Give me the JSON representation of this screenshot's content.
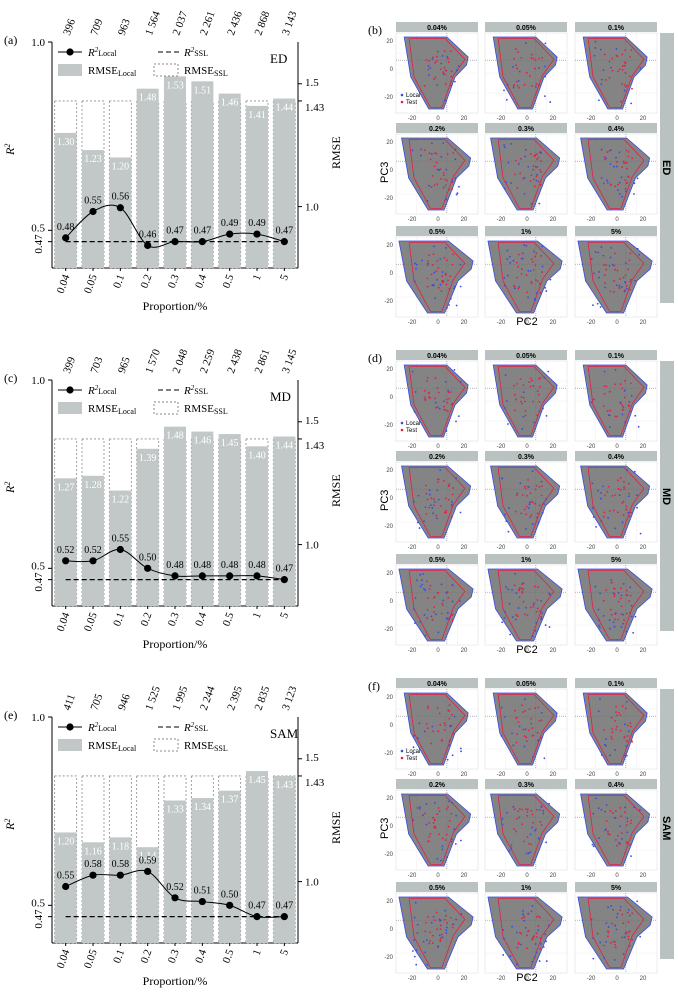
{
  "figure": {
    "categories": [
      "0.04",
      "0.05",
      "0.1",
      "0.2",
      "0.3",
      "0.4",
      "0.5",
      "1",
      "5"
    ],
    "xlabel": "Proportion/%",
    "ylabel_left": "R²",
    "ylabel_right": "RMSE",
    "legend": {
      "r2_local": "R²Local",
      "r2_ssl": "R²SSL",
      "rmse_local": "RMSELocal",
      "rmse_ssl": "RMSESSL"
    },
    "pca": {
      "xlabel": "PC2",
      "ylabel": "PC3",
      "legend_local": "Local",
      "legend_test": "Test",
      "colors": {
        "local": "#3a4be0",
        "test": "#e0204a",
        "hull_fill": "#6f6f6f",
        "panel_bg": "#ebebeb",
        "strip_bg": "#b9c2c0"
      }
    },
    "colors": {
      "bar_fill": "#c2c8c8",
      "bar_label": "#ffffff",
      "ssl_box": "#8a8a8a",
      "line": "#000000"
    }
  },
  "chart_data": [
    {
      "type": "bar",
      "panel": "(a)",
      "method": "ED",
      "top_labels": [
        "396",
        "709",
        "963",
        "1 564",
        "2 037",
        "2 261",
        "2 436",
        "2 868",
        "3 143"
      ],
      "categories": [
        "0.04",
        "0.05",
        "0.1",
        "0.2",
        "0.3",
        "0.4",
        "0.5",
        "1",
        "5"
      ],
      "series": [
        {
          "name": "RMSELocal",
          "values": [
            1.3,
            1.23,
            1.2,
            1.48,
            1.53,
            1.51,
            1.46,
            1.41,
            1.44
          ]
        },
        {
          "name": "RMSESSL",
          "values": [
            1.43,
            1.43,
            1.43,
            1.43,
            1.43,
            1.43,
            1.43,
            1.43,
            1.43
          ]
        },
        {
          "name": "R²Local",
          "values": [
            0.48,
            0.55,
            0.56,
            0.46,
            0.47,
            0.47,
            0.49,
            0.49,
            0.47
          ]
        },
        {
          "name": "R²SSL",
          "values": [
            0.47,
            0.47,
            0.47,
            0.47,
            0.47,
            0.47,
            0.47,
            0.47,
            0.47
          ]
        }
      ],
      "xlabel": "Proportion/%",
      "y_left": {
        "range": [
          0.4,
          1.0
        ],
        "ticks": [
          "1.0",
          "0.5",
          "0.47"
        ]
      },
      "y_right": {
        "range": [
          0.75,
          1.67
        ],
        "ticks": [
          "1.5",
          "1.43",
          "1.0"
        ]
      }
    },
    {
      "type": "bar",
      "panel": "(c)",
      "method": "MD",
      "top_labels": [
        "399",
        "703",
        "965",
        "1 570",
        "2 048",
        "2 259",
        "2 438",
        "2 861",
        "3 145"
      ],
      "categories": [
        "0.04",
        "0.05",
        "0.1",
        "0.2",
        "0.3",
        "0.4",
        "0.5",
        "1",
        "5"
      ],
      "series": [
        {
          "name": "RMSELocal",
          "values": [
            1.27,
            1.28,
            1.22,
            1.39,
            1.48,
            1.46,
            1.45,
            1.4,
            1.44
          ]
        },
        {
          "name": "RMSESSL",
          "values": [
            1.43,
            1.43,
            1.43,
            1.43,
            1.43,
            1.43,
            1.43,
            1.43,
            1.43
          ]
        },
        {
          "name": "R²Local",
          "values": [
            0.52,
            0.52,
            0.55,
            0.5,
            0.48,
            0.48,
            0.48,
            0.48,
            0.47
          ]
        },
        {
          "name": "R²SSL",
          "values": [
            0.47,
            0.47,
            0.47,
            0.47,
            0.47,
            0.47,
            0.47,
            0.47,
            0.47
          ]
        }
      ],
      "xlabel": "Proportion/%",
      "y_left": {
        "range": [
          0.4,
          1.0
        ],
        "ticks": [
          "1.0",
          "0.5",
          "0.47"
        ]
      },
      "y_right": {
        "range": [
          0.75,
          1.67
        ],
        "ticks": [
          "1.5",
          "1.43",
          "1.0"
        ]
      }
    },
    {
      "type": "bar",
      "panel": "(e)",
      "method": "SAM",
      "top_labels": [
        "411",
        "705",
        "946",
        "1 525",
        "1 995",
        "2 244",
        "2 395",
        "2 835",
        "3 123"
      ],
      "categories": [
        "0.04",
        "0.05",
        "0.1",
        "0.2",
        "0.3",
        "0.4",
        "0.5",
        "1",
        "5"
      ],
      "series": [
        {
          "name": "RMSELocal",
          "values": [
            1.2,
            1.16,
            1.18,
            1.14,
            1.33,
            1.34,
            1.37,
            1.45,
            1.43
          ]
        },
        {
          "name": "RMSESSL",
          "values": [
            1.43,
            1.43,
            1.43,
            1.43,
            1.43,
            1.43,
            1.43,
            1.43,
            1.43
          ]
        },
        {
          "name": "R²Local",
          "values": [
            0.55,
            0.58,
            0.58,
            0.59,
            0.52,
            0.51,
            0.5,
            0.47,
            0.47
          ]
        },
        {
          "name": "R²SSL",
          "values": [
            0.47,
            0.47,
            0.47,
            0.47,
            0.47,
            0.47,
            0.47,
            0.47,
            0.47
          ]
        }
      ],
      "xlabel": "Proportion/%",
      "y_left": {
        "range": [
          0.4,
          1.0
        ],
        "ticks": [
          "1.0",
          "0.5",
          "0.47"
        ]
      },
      "y_right": {
        "range": [
          0.75,
          1.67
        ],
        "ticks": [
          "1.5",
          "1.43",
          "1.0"
        ]
      }
    },
    {
      "type": "scatter",
      "panel": "(b)",
      "method": "ED",
      "facets": [
        "0.04%",
        "0.05%",
        "0.1%",
        "0.2%",
        "0.3%",
        "0.4%",
        "0.5%",
        "1%",
        "5%"
      ],
      "xlabel": "PC2",
      "ylabel": "PC3",
      "x_ticks": [
        "-20",
        "0",
        "20"
      ],
      "y_ticks": [
        "20",
        "0",
        "-20"
      ],
      "legend": [
        "Local",
        "Test"
      ]
    },
    {
      "type": "scatter",
      "panel": "(d)",
      "method": "MD",
      "facets": [
        "0.04%",
        "0.05%",
        "0.1%",
        "0.2%",
        "0.3%",
        "0.4%",
        "0.5%",
        "1%",
        "5%"
      ],
      "xlabel": "PC2",
      "ylabel": "PC3",
      "x_ticks": [
        "-20",
        "0",
        "20"
      ],
      "y_ticks": [
        "20",
        "0",
        "-20"
      ],
      "legend": [
        "Local",
        "Test"
      ]
    },
    {
      "type": "scatter",
      "panel": "(f)",
      "method": "SAM",
      "facets": [
        "0.04%",
        "0.05%",
        "0.1%",
        "0.2%",
        "0.3%",
        "0.4%",
        "0.5%",
        "1%",
        "5%"
      ],
      "xlabel": "PC2",
      "ylabel": "PC3",
      "x_ticks": [
        "-20",
        "0",
        "20"
      ],
      "y_ticks": [
        "20",
        "0",
        "-20"
      ],
      "legend": [
        "Local",
        "Test"
      ]
    }
  ]
}
